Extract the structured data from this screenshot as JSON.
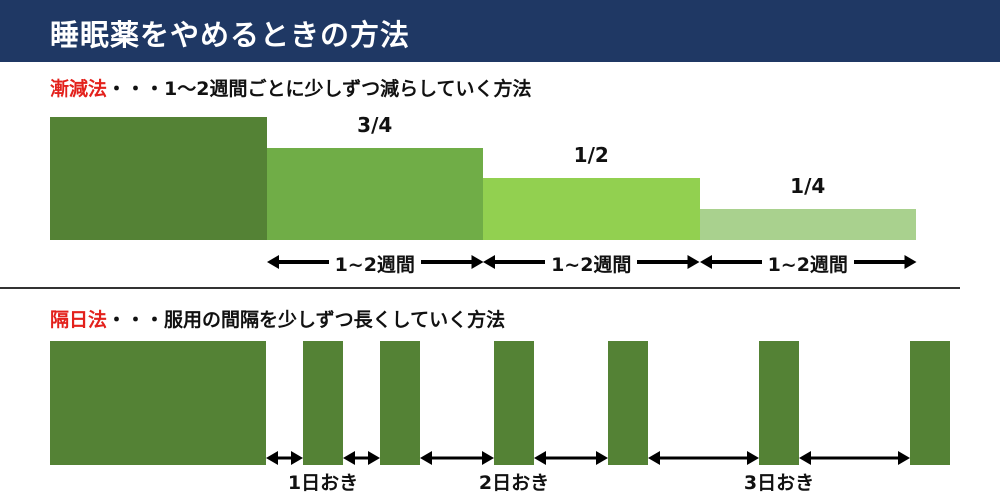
{
  "header": {
    "title": "睡眠薬をやめるときの方法"
  },
  "taper": {
    "label": "漸減法",
    "description": "・・・1～2週間ごとに少しずつ減らしていく方法",
    "steps": [
      {
        "fraction": 1,
        "label": "",
        "color": "#548235"
      },
      {
        "fraction": 0.75,
        "label": "3/4",
        "color": "#70ad47"
      },
      {
        "fraction": 0.5,
        "label": "1/2",
        "color": "#92d050"
      },
      {
        "fraction": 0.25,
        "label": "1/4",
        "color": "#a9d18e"
      }
    ],
    "period_label": "1~2週間"
  },
  "alternate": {
    "label": "隔日法",
    "description": "・・・服用の間隔を少しずつ長くしていく方法",
    "bar_color": "#548235",
    "intervals": [
      {
        "days": 1,
        "label": "1日おき"
      },
      {
        "days": 2,
        "label": "2日おき"
      },
      {
        "days": 3,
        "label": "3日おき"
      }
    ]
  }
}
